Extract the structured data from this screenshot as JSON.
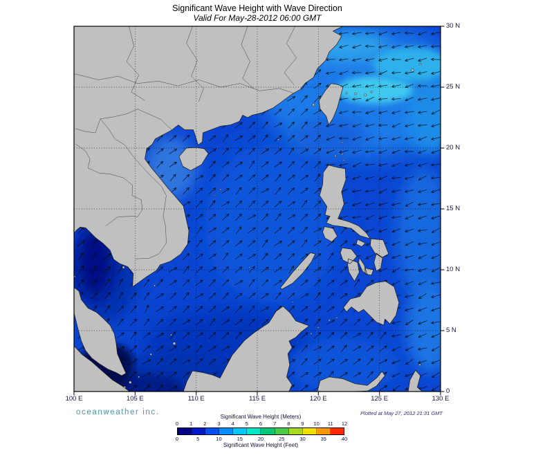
{
  "header": {
    "title": "Significant Wave Height with Wave Direction",
    "subtitle": "Valid For May-28-2012 06:00 GMT"
  },
  "footer": {
    "branding": "oceanweather inc.",
    "plotted_at": "Plotted at May 27, 2012 21:31 GMT"
  },
  "axes": {
    "lon_ticks": [
      "100 E",
      "105 E",
      "110 E",
      "115 E",
      "120 E",
      "125 E",
      "130 E"
    ],
    "lat_ticks": [
      "30 N",
      "25 N",
      "20 N",
      "15 N",
      "10 N",
      "5 N",
      "0"
    ]
  },
  "legend": {
    "meters_title": "Significant Wave Height (Meters)",
    "feet_title": "Significant Wave Height (Feet)",
    "meters_ticks": [
      "0",
      "1",
      "2",
      "3",
      "4",
      "5",
      "6",
      "7",
      "8",
      "9",
      "10",
      "11",
      "12"
    ],
    "feet_ticks": [
      "0",
      "5",
      "10",
      "15",
      "20",
      "25",
      "30",
      "35",
      "40"
    ],
    "colors": [
      "#000082",
      "#0018c8",
      "#0050f0",
      "#0090ff",
      "#00c8ff",
      "#00e8c8",
      "#00c878",
      "#48cc48",
      "#a8d820",
      "#f0e000",
      "#ff9800",
      "#ff2800"
    ]
  },
  "map": {
    "ocean_color": "#0a46d2",
    "land_color": "#c0c0c0",
    "coast_color": "#1a1a1a",
    "grid_color": "#000000",
    "arrow_color": "#0a0a0a"
  }
}
